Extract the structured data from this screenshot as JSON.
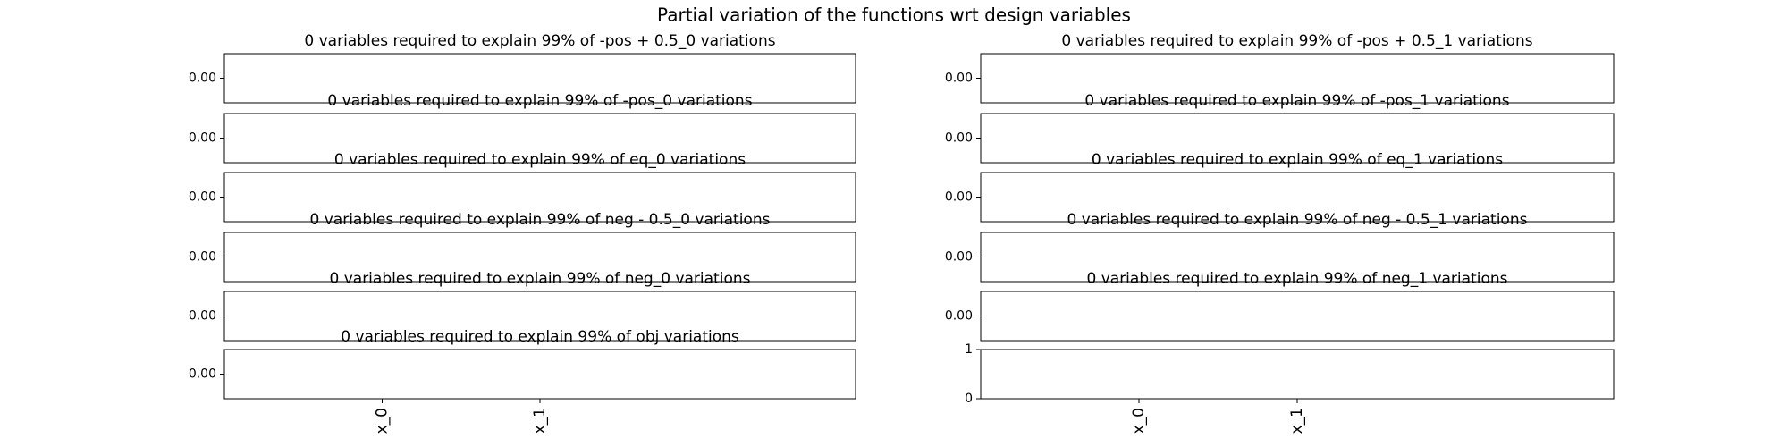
{
  "title": "Partial variation of the functions wrt design variables",
  "chart_data": [
    {
      "type": "bar",
      "title": "0 variables required to explain 99% of -pos + 0.5_0 variations",
      "xlim": [
        -1,
        3
      ],
      "ylim": [
        -0.055,
        0.055
      ],
      "yticks": [
        {
          "value": 0,
          "label": "0.00"
        }
      ]
    },
    {
      "type": "bar",
      "title": "0 variables required to explain 99% of -pos_0 variations",
      "xlim": [
        -1,
        3
      ],
      "ylim": [
        -0.055,
        0.055
      ],
      "yticks": [
        {
          "value": 0,
          "label": "0.00"
        }
      ]
    },
    {
      "type": "bar",
      "title": "0 variables required to explain 99% of eq_0 variations",
      "xlim": [
        -1,
        3
      ],
      "ylim": [
        -0.055,
        0.055
      ],
      "yticks": [
        {
          "value": 0,
          "label": "0.00"
        }
      ]
    },
    {
      "type": "bar",
      "title": "0 variables required to explain 99% of neg - 0.5_0 variations",
      "xlim": [
        -1,
        3
      ],
      "ylim": [
        -0.055,
        0.055
      ],
      "yticks": [
        {
          "value": 0,
          "label": "0.00"
        }
      ]
    },
    {
      "type": "bar",
      "title": "0 variables required to explain 99% of neg_0 variations",
      "xlim": [
        -1,
        3
      ],
      "ylim": [
        -0.055,
        0.055
      ],
      "yticks": [
        {
          "value": 0,
          "label": "0.00"
        }
      ]
    },
    {
      "type": "bar",
      "title": "0 variables required to explain 99% of obj variations",
      "xlim": [
        -1,
        3
      ],
      "ylim": [
        -0.055,
        0.055
      ],
      "yticks": [
        {
          "value": 0,
          "label": "0.00"
        }
      ],
      "xticks": [
        {
          "value": 0,
          "label": "x_0"
        },
        {
          "value": 1,
          "label": "x_1"
        }
      ]
    },
    {
      "type": "bar",
      "title": "0 variables required to explain 99% of -pos + 0.5_1 variations",
      "xlim": [
        -1,
        3
      ],
      "ylim": [
        -0.055,
        0.055
      ],
      "yticks": [
        {
          "value": 0,
          "label": "0.00"
        }
      ]
    },
    {
      "type": "bar",
      "title": "0 variables required to explain 99% of -pos_1 variations",
      "xlim": [
        -1,
        3
      ],
      "ylim": [
        -0.055,
        0.055
      ],
      "yticks": [
        {
          "value": 0,
          "label": "0.00"
        }
      ]
    },
    {
      "type": "bar",
      "title": "0 variables required to explain 99% of eq_1 variations",
      "xlim": [
        -1,
        3
      ],
      "ylim": [
        -0.055,
        0.055
      ],
      "yticks": [
        {
          "value": 0,
          "label": "0.00"
        }
      ]
    },
    {
      "type": "bar",
      "title": "0 variables required to explain 99% of neg - 0.5_1 variations",
      "xlim": [
        -1,
        3
      ],
      "ylim": [
        -0.055,
        0.055
      ],
      "yticks": [
        {
          "value": 0,
          "label": "0.00"
        }
      ]
    },
    {
      "type": "bar",
      "title": "0 variables required to explain 99% of neg_1 variations",
      "xlim": [
        -1,
        3
      ],
      "ylim": [
        -0.055,
        0.055
      ],
      "yticks": [
        {
          "value": 0,
          "label": "0.00"
        }
      ]
    },
    {
      "type": "bar",
      "xlim": [
        -1,
        3
      ],
      "ylim": [
        0,
        1
      ],
      "yticks": [
        0,
        1
      ],
      "xticks": [
        {
          "value": 0,
          "label": "x_0"
        },
        {
          "value": 1,
          "label": "x_1"
        }
      ]
    }
  ]
}
